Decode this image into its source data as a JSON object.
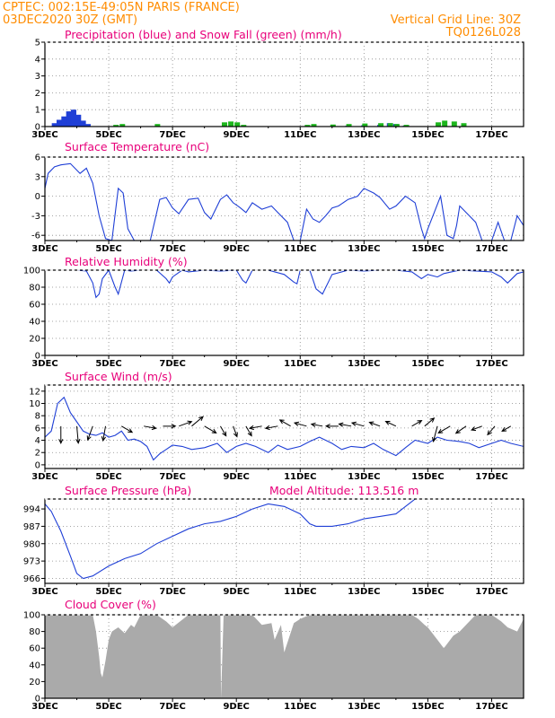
{
  "header": {
    "line1_left": "CPTEC:  002:15E-49:05N  PARIS (FRANCE)",
    "line2_left": "03DEC2020 30Z (GMT)",
    "line1_right": "Vertical Grid Line: 30Z",
    "line2_right": "TQ0126L028"
  },
  "colors": {
    "header": "#ff8c00",
    "title": "#e8007a",
    "line": "#1f3fd6",
    "precip": "#1f3fd6",
    "snow": "#1cb51c",
    "cloud": "#aaaaaa"
  },
  "x_ticks": [
    "3DEC",
    "5DEC",
    "7DEC",
    "9DEC",
    "11DEC",
    "13DEC",
    "15DEC",
    "17DEC"
  ],
  "chart_data": [
    {
      "type": "bar",
      "title": "Precipitation (blue) and Snow Fall (green) (mm/h)",
      "ylim": [
        0,
        5
      ],
      "yticks": [
        "0",
        "1",
        "2",
        "3",
        "4",
        "5"
      ],
      "x_day": [
        3.3,
        3.45,
        3.6,
        3.75,
        3.9,
        4.05,
        4.2,
        4.35,
        5.2,
        5.4,
        6.5,
        8.6,
        8.8,
        9.0,
        9.2,
        11.2,
        11.4,
        12.0,
        12.5,
        13.0,
        13.5,
        13.8,
        14.0,
        14.3,
        15.3,
        15.5,
        15.8,
        16.1
      ],
      "series": [
        {
          "name": "Precipitation",
          "values": [
            0.2,
            0.4,
            0.6,
            0.9,
            1.0,
            0.7,
            0.35,
            0.15,
            0,
            0,
            0,
            0,
            0,
            0,
            0,
            0,
            0,
            0,
            0.05,
            0.08,
            0.1,
            0.2,
            0.15,
            0.05,
            0,
            0,
            0,
            0
          ]
        },
        {
          "name": "Snow Fall",
          "values": [
            0,
            0,
            0,
            0,
            0,
            0,
            0,
            0,
            0.1,
            0.15,
            0.15,
            0.25,
            0.3,
            0.25,
            0.1,
            0.1,
            0.15,
            0.12,
            0.15,
            0.18,
            0.2,
            0.2,
            0.15,
            0.1,
            0.25,
            0.35,
            0.3,
            0.2
          ]
        }
      ]
    },
    {
      "type": "line",
      "title": "Surface Temperature (nC)",
      "ylim": [
        -6.8,
        6
      ],
      "yticks": [
        "6",
        "3",
        "0",
        "-3",
        "-6"
      ],
      "x": [
        3.0,
        3.1,
        3.3,
        3.5,
        3.8,
        4.1,
        4.3,
        4.5,
        4.7,
        4.9,
        5.1,
        5.3,
        5.45,
        5.6,
        5.8,
        6.0,
        6.3,
        6.6,
        6.8,
        6.9,
        7.0,
        7.2,
        7.5,
        7.8,
        8.0,
        8.2,
        8.5,
        8.7,
        8.9,
        9.1,
        9.3,
        9.5,
        9.8,
        10.1,
        10.4,
        10.6,
        10.8,
        11.0,
        11.2,
        11.4,
        11.6,
        11.8,
        12.0,
        12.2,
        12.5,
        12.8,
        13.0,
        13.3,
        13.5,
        13.8,
        14.0,
        14.3,
        14.6,
        14.8,
        14.9,
        15.0,
        15.2,
        15.4,
        15.6,
        15.8,
        15.9,
        16.0,
        16.2,
        16.5,
        16.7,
        16.9,
        17.0,
        17.2,
        17.4,
        17.6,
        17.8,
        18.0
      ],
      "y": [
        1.2,
        3.5,
        4.5,
        4.8,
        5.0,
        3.5,
        4.3,
        2.0,
        -3.0,
        -6.5,
        -6.8,
        1.2,
        0.5,
        -5.0,
        -6.8,
        -6.8,
        -6.8,
        -0.5,
        -0.2,
        -1.0,
        -1.8,
        -2.7,
        -0.5,
        -0.3,
        -2.5,
        -3.5,
        -0.5,
        0.2,
        -1.0,
        -1.7,
        -2.5,
        -1.0,
        -2.0,
        -1.5,
        -3.0,
        -4.0,
        -6.8,
        -6.8,
        -2.0,
        -3.5,
        -4.0,
        -3.0,
        -1.8,
        -1.5,
        -0.5,
        0.0,
        1.2,
        0.5,
        -0.2,
        -2.0,
        -1.5,
        0.0,
        -1.0,
        -5.0,
        -6.5,
        -5.0,
        -2.5,
        0.0,
        -6.0,
        -6.5,
        -4.5,
        -1.5,
        -2.5,
        -4.0,
        -6.8,
        -6.8,
        -6.8,
        -4.0,
        -6.8,
        -6.8,
        -3.0,
        -4.5
      ]
    },
    {
      "type": "line",
      "title": "Relative Humidity (%)",
      "ylim": [
        0,
        100
      ],
      "yticks": [
        "100",
        "80",
        "60",
        "40",
        "20",
        "0"
      ],
      "x": [
        3.0,
        3.5,
        4.0,
        4.3,
        4.5,
        4.6,
        4.7,
        4.8,
        5.0,
        5.2,
        5.3,
        5.5,
        5.7,
        6.0,
        6.5,
        6.8,
        6.9,
        7.0,
        7.3,
        7.5,
        8.0,
        8.5,
        9.0,
        9.2,
        9.3,
        9.5,
        9.8,
        10.0,
        10.5,
        10.8,
        10.9,
        11.0,
        11.3,
        11.5,
        11.7,
        12.0,
        12.5,
        13.0,
        13.5,
        14.0,
        14.5,
        14.8,
        15.0,
        15.3,
        15.5,
        16.0,
        16.5,
        17.0,
        17.3,
        17.5,
        17.8,
        18.0
      ],
      "y": [
        100,
        100,
        100,
        99,
        85,
        68,
        72,
        90,
        100,
        80,
        72,
        100,
        99,
        100,
        100,
        90,
        85,
        92,
        100,
        98,
        100,
        99,
        100,
        88,
        85,
        100,
        100,
        100,
        95,
        86,
        84,
        100,
        100,
        78,
        72,
        95,
        100,
        99,
        100,
        100,
        98,
        90,
        95,
        92,
        96,
        100,
        99,
        98,
        92,
        85,
        96,
        98
      ]
    },
    {
      "type": "line",
      "title": "Surface Wind (m/s)",
      "ylim": [
        -0.6,
        13
      ],
      "yticks": [
        "12",
        "10",
        "8",
        "6",
        "4",
        "2",
        "0"
      ],
      "x": [
        3.0,
        3.2,
        3.4,
        3.6,
        3.8,
        4.0,
        4.2,
        4.4,
        4.6,
        4.8,
        5.0,
        5.2,
        5.4,
        5.6,
        5.8,
        6.0,
        6.2,
        6.4,
        6.6,
        6.8,
        7.0,
        7.3,
        7.6,
        8.0,
        8.4,
        8.7,
        9.0,
        9.3,
        9.6,
        10.0,
        10.3,
        10.6,
        11.0,
        11.3,
        11.6,
        12.0,
        12.3,
        12.6,
        13.0,
        13.3,
        13.6,
        14.0,
        14.3,
        14.6,
        15.0,
        15.3,
        15.6,
        16.0,
        16.3,
        16.6,
        17.0,
        17.3,
        17.6,
        18.0
      ],
      "y": [
        4.5,
        5.5,
        10.0,
        11.0,
        8.5,
        7.0,
        5.5,
        5.0,
        4.8,
        5.2,
        4.5,
        4.8,
        5.5,
        4.0,
        4.2,
        3.8,
        3.0,
        0.8,
        1.8,
        2.5,
        3.2,
        3.0,
        2.5,
        2.8,
        3.5,
        2.0,
        3.0,
        3.5,
        3.0,
        2.0,
        3.2,
        2.5,
        3.0,
        3.8,
        4.5,
        3.5,
        2.5,
        3.0,
        2.8,
        3.5,
        2.5,
        1.5,
        2.8,
        4.0,
        3.5,
        4.5,
        4.0,
        3.8,
        3.5,
        2.8,
        3.5,
        4.0,
        3.5,
        3.0
      ],
      "arrows": {
        "x": [
          3.5,
          4.0,
          4.5,
          4.9,
          5.4,
          6.1,
          6.7,
          7.2,
          7.6,
          8.0,
          8.5,
          8.9,
          9.3,
          9.8,
          10.3,
          10.7,
          11.2,
          11.7,
          12.2,
          12.6,
          13.0,
          13.5,
          14.0,
          14.5,
          14.9,
          15.3,
          15.7,
          16.2,
          16.7,
          17.1,
          17.6
        ],
        "dir_deg": [
          270,
          275,
          250,
          260,
          330,
          350,
          0,
          20,
          40,
          330,
          300,
          290,
          300,
          190,
          190,
          150,
          165,
          170,
          180,
          170,
          165,
          160,
          155,
          30,
          40,
          255,
          210,
          215,
          200,
          230,
          210
        ],
        "speed": [
          10,
          10,
          8,
          8,
          6,
          6,
          6,
          7,
          8,
          7,
          5,
          5,
          5,
          6,
          6,
          6,
          6,
          5,
          6,
          6,
          6,
          5,
          5,
          5,
          6,
          9,
          7,
          6,
          5,
          5,
          4
        ]
      }
    },
    {
      "type": "line",
      "title": "Surface Pressure (hPa)",
      "subtitle": "Model Altitude: 113.516 m",
      "ylim": [
        964,
        998
      ],
      "yticks": [
        "994",
        "987",
        "980",
        "973",
        "966"
      ],
      "x": [
        3.0,
        3.2,
        3.5,
        3.8,
        4.0,
        4.2,
        4.5,
        5.0,
        5.5,
        6.0,
        6.5,
        7.0,
        7.5,
        8.0,
        8.5,
        9.0,
        9.5,
        10.0,
        10.5,
        11.0,
        11.3,
        11.5,
        12.0,
        12.5,
        13.0,
        13.5,
        14.0,
        14.3,
        14.5,
        14.6
      ],
      "y": [
        996,
        993,
        985,
        975,
        968,
        966,
        967,
        971,
        974,
        976,
        980,
        983,
        986,
        988,
        989,
        991,
        994,
        996,
        995,
        992,
        988,
        987,
        987,
        988,
        990,
        991,
        992,
        995,
        997,
        998
      ]
    },
    {
      "type": "area",
      "title": "Cloud Cover (%)",
      "ylim": [
        0,
        100
      ],
      "yticks": [
        "100",
        "80",
        "60",
        "40",
        "20",
        "0"
      ],
      "x": [
        3.0,
        4.5,
        4.6,
        4.7,
        4.75,
        4.8,
        4.9,
        5.0,
        5.1,
        5.3,
        5.5,
        5.7,
        5.8,
        6.0,
        6.3,
        6.5,
        6.8,
        7.0,
        7.5,
        8.0,
        8.5,
        8.52,
        8.6,
        9.0,
        9.5,
        9.8,
        10.1,
        10.2,
        10.4,
        10.5,
        10.8,
        11.0,
        11.3,
        11.6,
        12.0,
        12.5,
        13.0,
        13.5,
        14.0,
        14.5,
        14.7,
        14.9,
        15.0,
        15.3,
        15.5,
        15.8,
        16.0,
        16.5,
        17.0,
        17.3,
        17.5,
        17.8,
        18.0
      ],
      "y": [
        100,
        100,
        80,
        50,
        30,
        25,
        45,
        70,
        80,
        85,
        78,
        88,
        85,
        100,
        100,
        100,
        92,
        85,
        100,
        100,
        100,
        0,
        100,
        100,
        100,
        88,
        90,
        70,
        88,
        55,
        90,
        95,
        100,
        100,
        100,
        100,
        100,
        100,
        100,
        100,
        95,
        88,
        85,
        70,
        60,
        75,
        80,
        100,
        100,
        92,
        85,
        80,
        95
      ]
    }
  ]
}
